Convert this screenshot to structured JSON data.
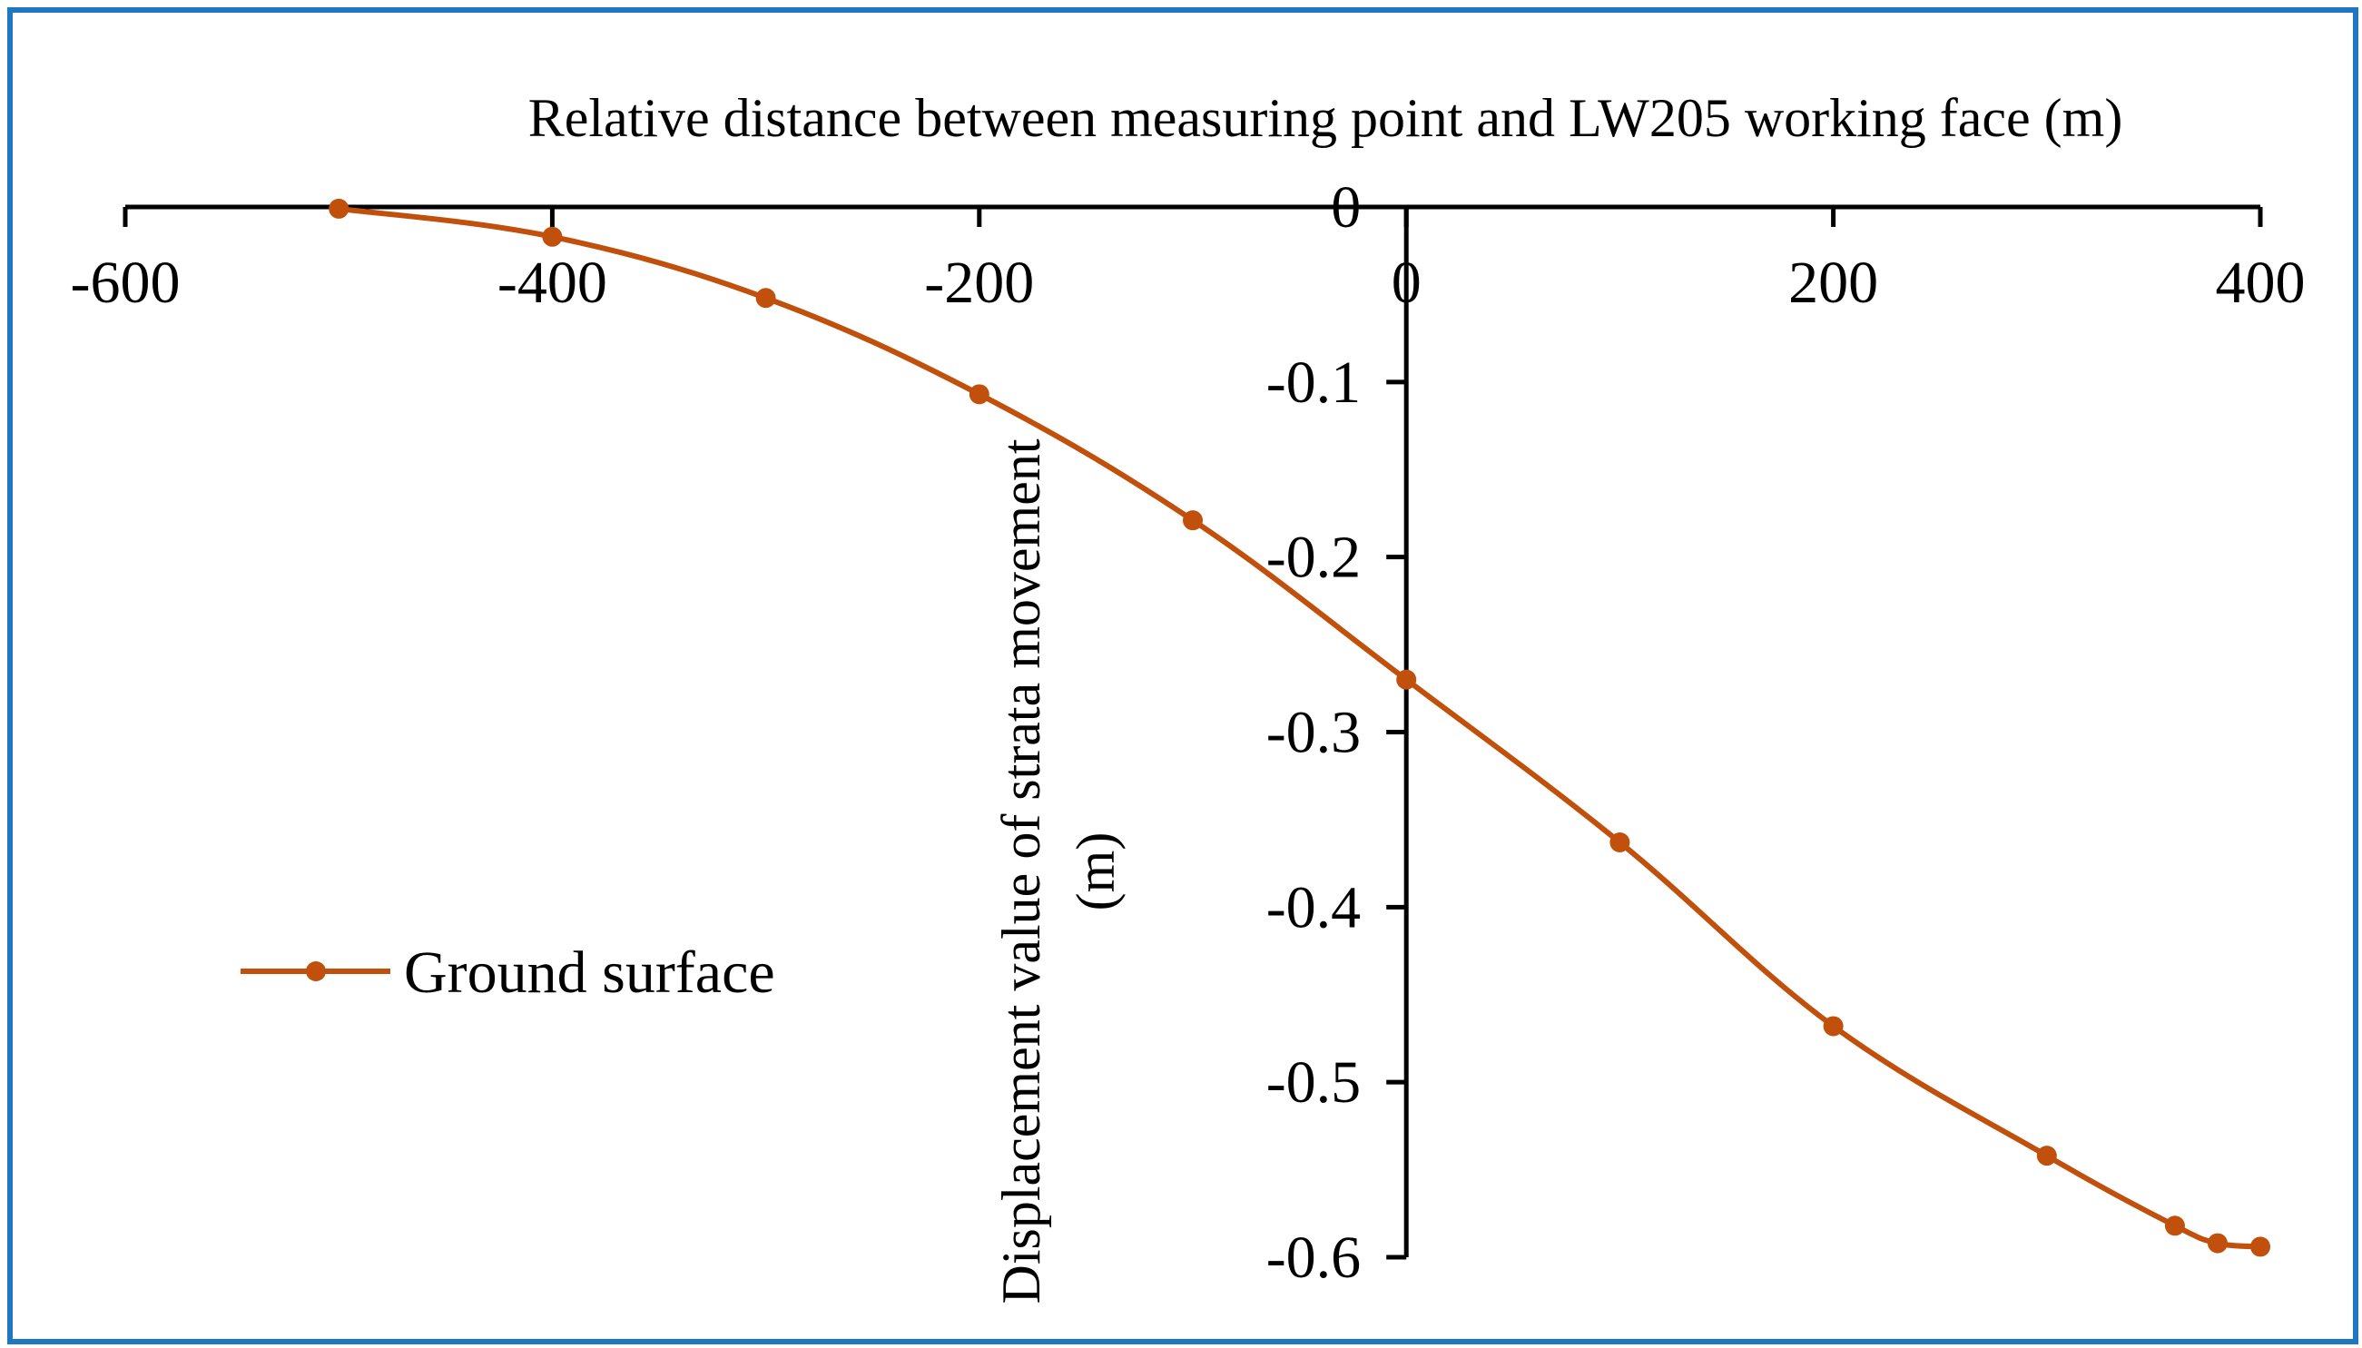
{
  "chart_data": {
    "type": "line",
    "title": "",
    "xlabel": "Relative distance between measuring point and LW205 working face (m)",
    "ylabel_lines": [
      "Displacement value of  strata movement",
      "(m)"
    ],
    "xlim": [
      -600,
      400
    ],
    "ylim": [
      -0.6,
      0
    ],
    "x_ticks": [
      -600,
      -400,
      -200,
      0,
      200,
      400
    ],
    "x_tick_labels": [
      "-600",
      "-400",
      "-200",
      "0",
      "200",
      "400"
    ],
    "y_ticks": [
      0,
      -0.1,
      -0.2,
      -0.3,
      -0.4,
      -0.5,
      -0.6
    ],
    "y_tick_labels": [
      "0",
      "-0.1",
      "-0.2",
      "-0.3",
      "-0.4",
      "-0.5",
      "-0.6"
    ],
    "x_axis_position": "top",
    "y_axis_position": "x=0",
    "grid": false,
    "legend_position": "left-middle",
    "colors": {
      "series": "#c0500b",
      "axis": "#000000",
      "frame": "#1f77c4"
    },
    "series": [
      {
        "name": "Ground surface",
        "x": [
          -500,
          -400,
          -300,
          -200,
          -100,
          0,
          100,
          200,
          300,
          360,
          380,
          400
        ],
        "y": [
          -0.001,
          -0.017,
          -0.052,
          -0.107,
          -0.179,
          -0.27,
          -0.363,
          -0.468,
          -0.542,
          -0.582,
          -0.592,
          -0.594
        ]
      }
    ]
  }
}
